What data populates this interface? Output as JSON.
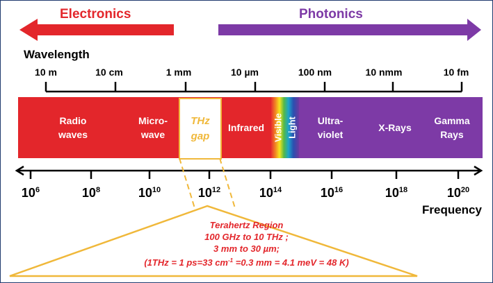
{
  "headers": {
    "electronics": "Electronics",
    "photonics": "Photonics",
    "electronics_color": "#e3262b",
    "photonics_color": "#7d3aa6"
  },
  "wavelength": {
    "label": "Wavelength",
    "ticks": [
      "10 m",
      "10 cm",
      "1 mm",
      "10 µm",
      "100 nm",
      "10 nmm",
      "10 fm"
    ]
  },
  "bands": {
    "radio": [
      "Radio",
      "waves"
    ],
    "microwave": [
      "Micro-",
      "wave"
    ],
    "thz_gap": [
      "THz",
      "gap"
    ],
    "infrared": "Infrared",
    "visible": "Visible",
    "light": "Light",
    "ultraviolet": [
      "Ultra-",
      "violet"
    ],
    "xrays": "X-Rays",
    "gamma": [
      "Gamma",
      "Rays"
    ]
  },
  "band_colors": {
    "red": "#e3262b",
    "purple": "#7d3aa6",
    "gold": "#f0b83a"
  },
  "frequency": {
    "base": "10",
    "exponents": [
      "6",
      "8",
      "10",
      "12",
      "14",
      "16",
      "18",
      "20"
    ],
    "label": "Frequency"
  },
  "terahertz_region": {
    "title": "Terahertz Region",
    "line1": "100 GHz to 10 THz ;",
    "line2": "3 mm to 30 µm;",
    "line3_a": "(1THz = 1 ps=33 cm",
    "line3_sup": "-1",
    "line3_b": " =0.3 mm =  4.1 meV = 48 K)"
  }
}
